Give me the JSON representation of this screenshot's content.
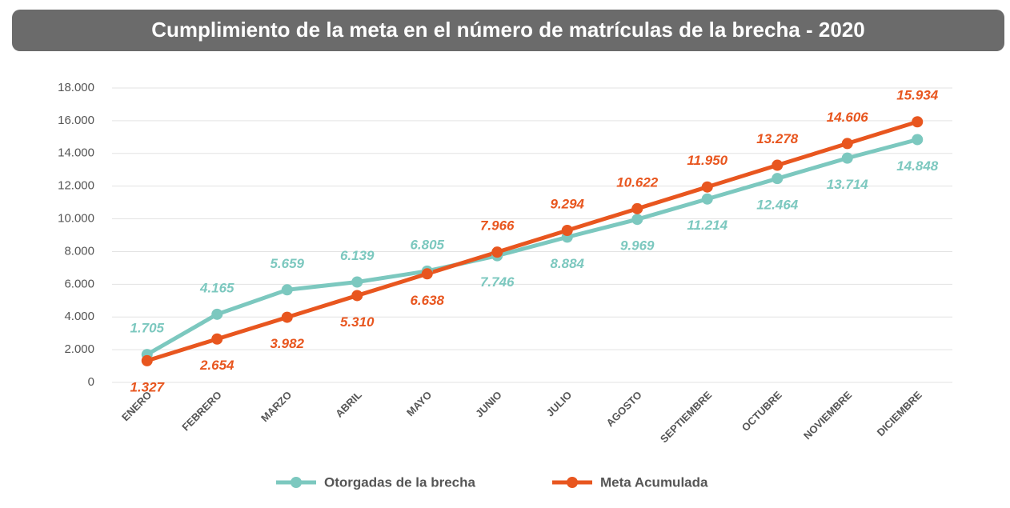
{
  "chart_data": {
    "type": "line",
    "title": "Cumplimiento de la meta en el número de matrículas de la brecha - 2020",
    "categories": [
      "ENERO",
      "FEBRERO",
      "MARZO",
      "ABRIL",
      "MAYO",
      "JUNIO",
      "JULIO",
      "AGOSTO",
      "SEPTIEMBRE",
      "OCTUBRE",
      "NOVIEMBRE",
      "DICIEMBRE"
    ],
    "series": [
      {
        "name": "Otorgadas de la brecha",
        "color": "#7cc8bf",
        "values": [
          1705,
          4165,
          5659,
          6139,
          6805,
          7746,
          8884,
          9969,
          11214,
          12464,
          13714,
          14848
        ],
        "value_labels": [
          "1.705",
          "4.165",
          "5.659",
          "6.139",
          "6.805",
          "7.746",
          "8.884",
          "9.969",
          "11.214",
          "12.464",
          "13.714",
          "14.848"
        ]
      },
      {
        "name": "Meta Acumulada",
        "color": "#e8561f",
        "values": [
          1327,
          2654,
          3982,
          5310,
          6638,
          7966,
          9294,
          10622,
          11950,
          13278,
          14606,
          15934
        ],
        "value_labels": [
          "1.327",
          "2.654",
          "3.982",
          "5.310",
          "6.638",
          "7.966",
          "9.294",
          "10.622",
          "11.950",
          "13.278",
          "14.606",
          "15.934"
        ]
      }
    ],
    "ylim": [
      0,
      18000
    ],
    "yticks": [
      0,
      {
        "value": 2000,
        "label": "2.000"
      },
      {
        "value": 4000,
        "label": "4.000"
      },
      {
        "value": 6000,
        "label": "6.000"
      },
      {
        "value": 8000,
        "label": "8.000"
      },
      {
        "value": 10000,
        "label": "10.000"
      },
      {
        "value": 12000,
        "label": "12.000"
      },
      {
        "value": 14000,
        "label": "14.000"
      },
      {
        "value": 16000,
        "label": "16.000"
      },
      {
        "value": 18000,
        "label": "18.000"
      }
    ],
    "grid": true
  }
}
